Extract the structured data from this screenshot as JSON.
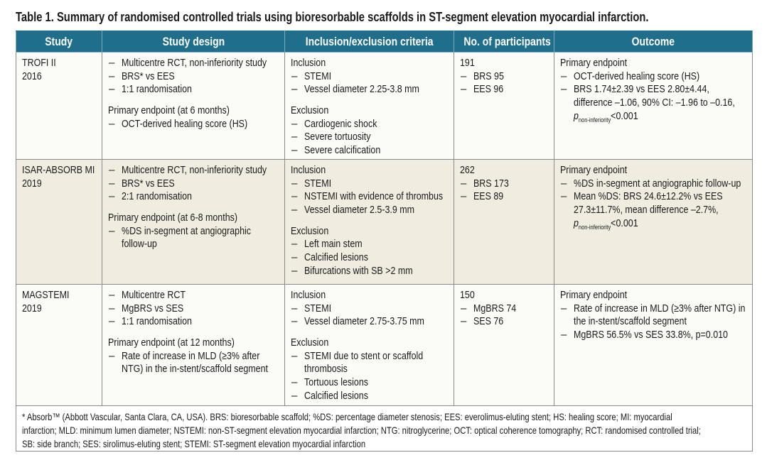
{
  "title": "Table 1. Summary of randomised controlled trials using bioresorbable scaffolds in ST-segment elevation myocardial infarction.",
  "columns": [
    "Study",
    "Study design",
    "Inclusion/exclusion criteria",
    "No. of participants",
    "Outcome"
  ],
  "rows": [
    {
      "cells": [
        [
          {
            "k": "head",
            "lines": [
              "TROFI II",
              "2016"
            ]
          }
        ],
        [
          {
            "k": "item",
            "lines": [
              "Multicentre RCT, non-inferiority study"
            ]
          },
          {
            "k": "item",
            "lines": [
              "BRS* vs EES"
            ]
          },
          {
            "k": "item",
            "lines": [
              "1:1 randomisation"
            ]
          },
          {
            "k": "head",
            "gap": true,
            "lines": [
              "Primary endpoint (at 6 months)"
            ]
          },
          {
            "k": "item",
            "lines": [
              "OCT-derived healing score (HS)"
            ]
          }
        ],
        [
          {
            "k": "head",
            "lines": [
              "Inclusion"
            ]
          },
          {
            "k": "item",
            "lines": [
              "STEMI"
            ]
          },
          {
            "k": "item",
            "lines": [
              "Vessel diameter 2.25-3.8 mm"
            ]
          },
          {
            "k": "head",
            "gap": true,
            "lines": [
              "Exclusion"
            ]
          },
          {
            "k": "item",
            "lines": [
              "Cardiogenic shock"
            ]
          },
          {
            "k": "item",
            "lines": [
              "Severe tortuosity"
            ]
          },
          {
            "k": "item",
            "lines": [
              "Severe calcification"
            ]
          }
        ],
        [
          {
            "k": "head",
            "lines": [
              "191"
            ]
          },
          {
            "k": "item",
            "lines": [
              "BRS 95"
            ]
          },
          {
            "k": "item",
            "lines": [
              "EES 96"
            ]
          }
        ],
        [
          {
            "k": "head",
            "lines": [
              "Primary endpoint"
            ]
          },
          {
            "k": "item",
            "lines": [
              "OCT-derived healing score (HS)"
            ]
          },
          {
            "k": "item",
            "lines": [
              "BRS 1.74±2.39 vs EES 2.80±4.44,",
              "difference –1.06, 90% CI: –1.96 to –0.16,"
            ]
          },
          {
            "k": "p",
            "p": "p",
            "sub": "non-inferiority",
            "rest": "<0.001"
          }
        ]
      ]
    },
    {
      "cells": [
        [
          {
            "k": "head",
            "lines": [
              "ISAR-ABSORB MI",
              "2019"
            ]
          }
        ],
        [
          {
            "k": "item",
            "lines": [
              "Multicentre RCT, non-inferiority study"
            ]
          },
          {
            "k": "item",
            "lines": [
              "BRS* vs EES"
            ]
          },
          {
            "k": "item",
            "lines": [
              "2:1 randomisation"
            ]
          },
          {
            "k": "head",
            "gap": true,
            "lines": [
              "Primary endpoint (at 6-8 months)"
            ]
          },
          {
            "k": "item",
            "lines": [
              "%DS in-segment at angiographic",
              "follow-up"
            ]
          }
        ],
        [
          {
            "k": "head",
            "lines": [
              "Inclusion"
            ]
          },
          {
            "k": "item",
            "lines": [
              "STEMI"
            ]
          },
          {
            "k": "item",
            "lines": [
              "NSTEMI with evidence of thrombus"
            ]
          },
          {
            "k": "item",
            "lines": [
              "Vessel diameter 2.5-3.9 mm"
            ]
          },
          {
            "k": "head",
            "gap": true,
            "lines": [
              "Exclusion"
            ]
          },
          {
            "k": "item",
            "lines": [
              "Left main stem"
            ]
          },
          {
            "k": "item",
            "lines": [
              "Calcified lesions"
            ]
          },
          {
            "k": "item",
            "lines": [
              "Bifurcations with SB >2 mm"
            ]
          }
        ],
        [
          {
            "k": "head",
            "lines": [
              "262"
            ]
          },
          {
            "k": "item",
            "lines": [
              "BRS 173"
            ]
          },
          {
            "k": "item",
            "lines": [
              "EES 89"
            ]
          }
        ],
        [
          {
            "k": "head",
            "lines": [
              "Primary endpoint"
            ]
          },
          {
            "k": "item",
            "lines": [
              "%DS in-segment at angiographic follow-up"
            ]
          },
          {
            "k": "item",
            "lines": [
              "Mean %DS: BRS 24.6±12.2% vs EES",
              "27.3±11.7%, mean difference –2.7%,"
            ]
          },
          {
            "k": "p",
            "p": "p",
            "sub": "non-inferiority",
            "rest": "<0.001"
          }
        ]
      ]
    },
    {
      "cells": [
        [
          {
            "k": "head",
            "lines": [
              "MAGSTEMI",
              "2019"
            ]
          }
        ],
        [
          {
            "k": "item",
            "lines": [
              "Multicentre RCT"
            ]
          },
          {
            "k": "item",
            "lines": [
              "MgBRS vs SES"
            ]
          },
          {
            "k": "item",
            "lines": [
              "1:1 randomisation"
            ]
          },
          {
            "k": "head",
            "gap": true,
            "lines": [
              "Primary endpoint (at 12 months)"
            ]
          },
          {
            "k": "item",
            "lines": [
              "Rate of increase in MLD (≥3% after",
              "NTG) in the in-stent/scaffold segment"
            ]
          }
        ],
        [
          {
            "k": "head",
            "lines": [
              "Inclusion"
            ]
          },
          {
            "k": "item",
            "lines": [
              "STEMI"
            ]
          },
          {
            "k": "item",
            "lines": [
              "Vessel diameter 2.75-3.75 mm"
            ]
          },
          {
            "k": "head",
            "gap": true,
            "lines": [
              "Exclusion"
            ]
          },
          {
            "k": "item",
            "lines": [
              "STEMI due to stent or scaffold",
              "thrombosis"
            ]
          },
          {
            "k": "item",
            "lines": [
              "Tortuous lesions"
            ]
          },
          {
            "k": "item",
            "lines": [
              "Calcified lesions"
            ]
          }
        ],
        [
          {
            "k": "head",
            "lines": [
              "150"
            ]
          },
          {
            "k": "item",
            "lines": [
              "MgBRS 74"
            ]
          },
          {
            "k": "item",
            "lines": [
              "SES 76"
            ]
          }
        ],
        [
          {
            "k": "head",
            "lines": [
              "Primary endpoint"
            ]
          },
          {
            "k": "item",
            "lines": [
              "Rate of increase in MLD (≥3% after NTG) in",
              "the in-stent/scaffold segment"
            ]
          },
          {
            "k": "item",
            "lines": [
              "MgBRS 56.5% vs SES 33.8%, p=0.010"
            ]
          }
        ]
      ]
    }
  ],
  "dash": "–",
  "footnote": [
    "* Absorb™ (Abbott Vascular, Santa Clara, CA, USA). BRS: bioresorbable scaffold; %DS: percentage diameter stenosis; EES: everolimus-eluting stent; HS: healing score; MI: myocardial",
    "infarction; MLD: minimum lumen diameter; NSTEMI: non-ST-segment elevation myocardial infarction; NTG: nitroglycerine; OCT: optical coherence tomography; RCT: randomised controlled trial;",
    "SB: side branch; SES: sirolimus-eluting stent; STEMI: ST-segment elevation myocardial infarction"
  ]
}
